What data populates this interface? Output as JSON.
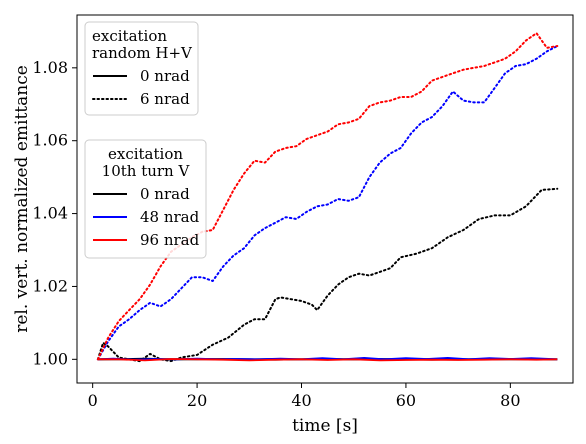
{
  "chart_data": {
    "type": "line",
    "xlabel": "time [s]",
    "ylabel": "rel. vert. normalized emittance",
    "xlim": [
      -3,
      92
    ],
    "ylim": [
      0.9935,
      1.0945
    ],
    "xticks": [
      0,
      20,
      40,
      60,
      80
    ],
    "yticks": [
      1.0,
      1.02,
      1.04,
      1.06,
      1.08
    ],
    "xtick_labels": [
      "0",
      "20",
      "40",
      "60",
      "80"
    ],
    "ytick_labels": [
      "1.00",
      "1.02",
      "1.04",
      "1.06",
      "1.08"
    ],
    "grid": false,
    "legends": [
      {
        "placement": "upper-left",
        "title_lines": [
          "excitation",
          "random H+V"
        ],
        "entries": [
          {
            "label": "0 nrad",
            "color": "#000000",
            "style": "solid"
          },
          {
            "label": "6 nrad",
            "color": "#000000",
            "style": "dotted"
          }
        ]
      },
      {
        "placement": "middle-left",
        "title_lines": [
          "excitation",
          "10th turn V"
        ],
        "entries": [
          {
            "label": "0 nrad",
            "color": "#000000",
            "style": "solid"
          },
          {
            "label": "48 nrad",
            "color": "#0000ff",
            "style": "solid"
          },
          {
            "label": "96 nrad",
            "color": "#ff0000",
            "style": "solid"
          }
        ]
      }
    ],
    "series": [
      {
        "color": "#000000",
        "style": "solid",
        "x": [
          1,
          5,
          10,
          15,
          20,
          25,
          30,
          35,
          40,
          45,
          50,
          55,
          60,
          65,
          70,
          75,
          80,
          85,
          89
        ],
        "y": [
          1.0,
          1.0,
          1.0002,
          1.0,
          1.0,
          1.0001,
          1.0,
          1.0001,
          1.0,
          1.0001,
          1.0,
          1.0001,
          1.0,
          1.0001,
          1.0,
          1.0,
          1.0001,
          1.0,
          1.0
        ]
      },
      {
        "color": "#000000",
        "style": "solid",
        "x": [
          1,
          5,
          10,
          15,
          20,
          25,
          30,
          35,
          40,
          45,
          50,
          55,
          60,
          65,
          70,
          75,
          80,
          85,
          89
        ],
        "y": [
          1.0,
          1.0001,
          0.9999,
          1.0,
          1.0001,
          1.0,
          1.0,
          0.9999,
          1.0,
          1.0,
          1.0,
          1.0,
          1.0,
          0.9999,
          1.0,
          1.0,
          1.0,
          1.0,
          1.0
        ]
      },
      {
        "color": "#000000",
        "style": "dotted",
        "x": [
          1,
          2,
          3,
          4,
          5,
          7,
          9,
          11,
          13,
          15,
          17,
          20,
          23,
          26,
          29,
          31,
          33,
          35,
          36,
          38,
          40,
          42,
          43,
          45,
          47,
          49,
          51,
          53,
          55,
          57,
          59,
          62,
          65,
          68,
          71,
          74,
          77,
          80,
          83,
          86,
          89
        ],
        "y": [
          1.0,
          1.0045,
          1.0035,
          1.002,
          1.0005,
          1.0,
          0.9995,
          1.0015,
          1.0,
          0.9995,
          1.0005,
          1.0012,
          1.004,
          1.006,
          1.0095,
          1.011,
          1.011,
          1.0165,
          1.017,
          1.0165,
          1.016,
          1.015,
          1.0135,
          1.0175,
          1.0205,
          1.0225,
          1.0235,
          1.023,
          1.024,
          1.025,
          1.028,
          1.029,
          1.0305,
          1.0335,
          1.0355,
          1.0385,
          1.0395,
          1.0395,
          1.042,
          1.0465,
          1.0468
        ]
      },
      {
        "color": "#0000ff",
        "style": "solid",
        "x": [
          1,
          4,
          8,
          12,
          16,
          20,
          24,
          28,
          32,
          36,
          40,
          44,
          48,
          52,
          56,
          60,
          64,
          68,
          72,
          76,
          80,
          84,
          89
        ],
        "y": [
          1.0,
          1.0002,
          0.9999,
          1.0001,
          1.0,
          1.0002,
          1.0,
          1.0001,
          1.0,
          1.0002,
          1.0,
          1.0003,
          1.0,
          1.0004,
          1.0,
          1.0003,
          1.0001,
          1.0004,
          1.0,
          1.0003,
          1.0001,
          1.0003,
          1.0
        ]
      },
      {
        "color": "#0000ff",
        "style": "dotted",
        "x": [
          1,
          3,
          5,
          7,
          9,
          11,
          13,
          15,
          17,
          19,
          21,
          23,
          25,
          27,
          29,
          31,
          33,
          35,
          37,
          39,
          41,
          43,
          45,
          47,
          49,
          51,
          53,
          55,
          57,
          59,
          61,
          63,
          65,
          67,
          69,
          71,
          73,
          75,
          77,
          79,
          81,
          83,
          85,
          87,
          89
        ],
        "y": [
          1.0,
          1.005,
          1.009,
          1.011,
          1.0135,
          1.0155,
          1.0145,
          1.0165,
          1.0195,
          1.0225,
          1.0225,
          1.0215,
          1.0255,
          1.0285,
          1.0305,
          1.034,
          1.036,
          1.0375,
          1.039,
          1.0385,
          1.0405,
          1.042,
          1.0425,
          1.044,
          1.0435,
          1.0445,
          1.05,
          1.054,
          1.0565,
          1.058,
          1.062,
          1.065,
          1.0665,
          1.0695,
          1.0735,
          1.071,
          1.0705,
          1.0705,
          1.0745,
          1.0785,
          1.0805,
          1.081,
          1.0825,
          1.0845,
          1.086
        ]
      },
      {
        "color": "#ff0000",
        "style": "solid",
        "x": [
          1,
          5,
          10,
          15,
          20,
          25,
          30,
          35,
          40,
          45,
          50,
          55,
          60,
          65,
          70,
          75,
          80,
          85,
          89
        ],
        "y": [
          1.0,
          1.0,
          0.9997,
          1.0001,
          1.0,
          0.9999,
          0.9997,
          0.9999,
          1.0,
          0.9998,
          1.0,
          0.9997,
          0.9998,
          0.9999,
          0.9998,
          0.9999,
          1.0,
          0.9999,
          1.0
        ]
      },
      {
        "color": "#ff0000",
        "style": "dotted",
        "x": [
          1,
          3,
          5,
          7,
          9,
          11,
          13,
          15,
          17,
          19,
          21,
          23,
          25,
          27,
          29,
          31,
          33,
          35,
          37,
          39,
          41,
          43,
          45,
          47,
          49,
          51,
          53,
          55,
          57,
          59,
          61,
          63,
          65,
          67,
          69,
          71,
          73,
          75,
          77,
          79,
          81,
          83,
          85,
          87,
          89
        ],
        "y": [
          1.0,
          1.006,
          1.0105,
          1.0135,
          1.0165,
          1.0205,
          1.0255,
          1.0295,
          1.0315,
          1.0335,
          1.035,
          1.0355,
          1.041,
          1.0465,
          1.051,
          1.0545,
          1.054,
          1.057,
          1.058,
          1.0585,
          1.0605,
          1.0615,
          1.0625,
          1.0645,
          1.065,
          1.066,
          1.0695,
          1.0705,
          1.071,
          1.072,
          1.072,
          1.0735,
          1.0765,
          1.0775,
          1.0785,
          1.0795,
          1.08,
          1.0805,
          1.0815,
          1.0825,
          1.0845,
          1.0875,
          1.0895,
          1.0855,
          1.086
        ]
      }
    ]
  }
}
